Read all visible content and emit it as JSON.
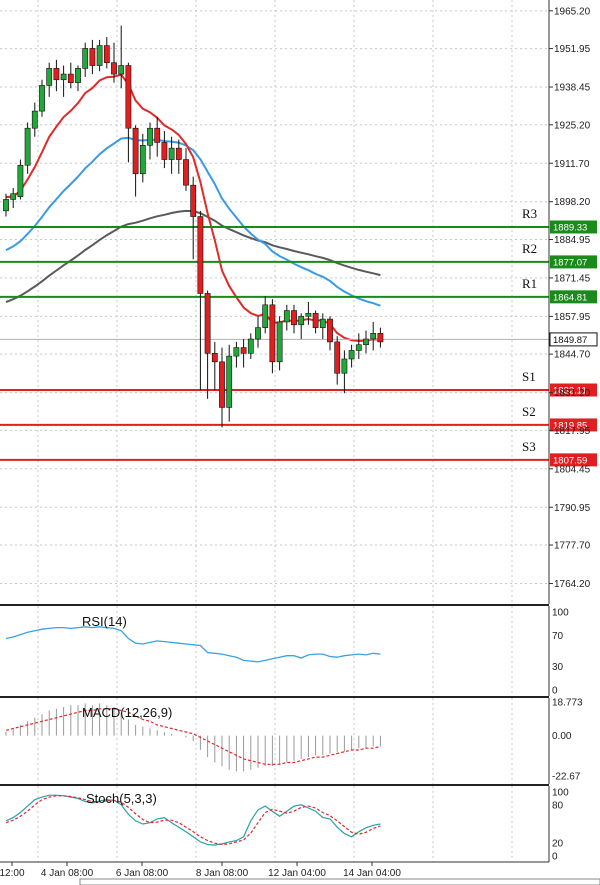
{
  "chart_data": {
    "type": "candlestick",
    "price_axis": {
      "ticks": [
        "1965.20",
        "1951.95",
        "1938.45",
        "1925.20",
        "1911.70",
        "1898.20",
        "1884.95",
        "1871.45",
        "1857.95",
        "1844.70",
        "1831.20",
        "1817.95",
        "1804.45",
        "1790.95",
        "1777.70",
        "1764.20"
      ],
      "range": [
        1757,
        1969
      ]
    },
    "time_axis": {
      "labels": [
        "12:00",
        "4 Jan 08:00",
        "6 Jan 08:00",
        "8 Jan 08:00",
        "12 Jan 04:00",
        "14 Jan 04:00"
      ]
    },
    "levels": [
      {
        "label": "R3",
        "value": 1889.33,
        "value_text": "1889.33",
        "color": "#1a8a1a"
      },
      {
        "label": "R2",
        "value": 1877.07,
        "value_text": "1877.07",
        "color": "#1a8a1a"
      },
      {
        "label": "R1",
        "value": 1864.81,
        "value_text": "1864.81",
        "color": "#1a8a1a"
      },
      {
        "label": "S1",
        "value": 1832.11,
        "value_text": "1832.11",
        "color": "#e02020"
      },
      {
        "label": "S2",
        "value": 1819.85,
        "value_text": "1819.85",
        "color": "#e02020"
      },
      {
        "label": "S3",
        "value": 1807.59,
        "value_text": "1807.59",
        "color": "#e02020"
      }
    ],
    "current_price": {
      "value": 1849.87,
      "value_text": "1849.87"
    },
    "candles": [
      [
        1895,
        1901,
        1893,
        1899
      ],
      [
        1899,
        1903,
        1896,
        1901
      ],
      [
        1900,
        1913,
        1899,
        1911
      ],
      [
        1911,
        1926,
        1908,
        1924
      ],
      [
        1924,
        1933,
        1921,
        1930
      ],
      [
        1930,
        1941,
        1928,
        1939
      ],
      [
        1939,
        1947,
        1935,
        1945
      ],
      [
        1945,
        1948,
        1937,
        1941
      ],
      [
        1941,
        1946,
        1935,
        1943
      ],
      [
        1943,
        1947,
        1938,
        1940
      ],
      [
        1940,
        1946,
        1937,
        1945
      ],
      [
        1945,
        1954,
        1942,
        1952
      ],
      [
        1952,
        1955,
        1943,
        1946
      ],
      [
        1946,
        1955,
        1944,
        1953
      ],
      [
        1953,
        1956,
        1945,
        1947
      ],
      [
        1947,
        1954,
        1940,
        1943
      ],
      [
        1943,
        1960,
        1938,
        1946
      ],
      [
        1946,
        1947,
        1912,
        1924
      ],
      [
        1924,
        1925,
        1900,
        1908
      ],
      [
        1908,
        1922,
        1905,
        1918
      ],
      [
        1918,
        1926,
        1913,
        1924
      ],
      [
        1924,
        1928,
        1914,
        1919
      ],
      [
        1919,
        1923,
        1910,
        1913
      ],
      [
        1913,
        1921,
        1908,
        1917
      ],
      [
        1917,
        1920,
        1908,
        1913
      ],
      [
        1913,
        1917,
        1902,
        1904
      ],
      [
        1904,
        1907,
        1878,
        1893
      ],
      [
        1893,
        1895,
        1832,
        1866
      ],
      [
        1866,
        1867,
        1829,
        1845
      ],
      [
        1845,
        1849,
        1832,
        1842
      ],
      [
        1842,
        1847,
        1819,
        1826
      ],
      [
        1826,
        1848,
        1821,
        1844
      ],
      [
        1844,
        1849,
        1840,
        1847
      ],
      [
        1847,
        1850,
        1840,
        1845
      ],
      [
        1845,
        1852,
        1843,
        1850
      ],
      [
        1850,
        1858,
        1847,
        1854
      ],
      [
        1854,
        1865,
        1852,
        1862
      ],
      [
        1862,
        1864,
        1838,
        1842
      ],
      [
        1842,
        1858,
        1839,
        1856
      ],
      [
        1856,
        1862,
        1853,
        1860
      ],
      [
        1860,
        1862,
        1852,
        1855
      ],
      [
        1855,
        1859,
        1850,
        1858
      ],
      [
        1858,
        1863,
        1855,
        1859
      ],
      [
        1859,
        1860,
        1852,
        1854
      ],
      [
        1854,
        1859,
        1850,
        1857
      ],
      [
        1857,
        1858,
        1846,
        1849
      ],
      [
        1849,
        1851,
        1834,
        1838
      ],
      [
        1838,
        1846,
        1831,
        1843
      ],
      [
        1843,
        1848,
        1840,
        1846
      ],
      [
        1846,
        1852,
        1843,
        1848
      ],
      [
        1848,
        1853,
        1845,
        1850
      ],
      [
        1850,
        1856,
        1846,
        1852
      ],
      [
        1852,
        1854,
        1847,
        1849
      ]
    ],
    "rsi": {
      "label": "RSI(14)",
      "ticks": [
        100,
        70,
        30,
        0
      ],
      "values": [
        66,
        68,
        71,
        74,
        76,
        78,
        79,
        80,
        80,
        79,
        80,
        81,
        80,
        81,
        80,
        79,
        76,
        66,
        60,
        59,
        61,
        63,
        62,
        61,
        60,
        59,
        58,
        57,
        48,
        47,
        46,
        44,
        42,
        38,
        37,
        36,
        38,
        40,
        42,
        44,
        44,
        41,
        45,
        46,
        46,
        43,
        42,
        44,
        45,
        46,
        45,
        47,
        46
      ]
    },
    "macd": {
      "label": "MACD(12,26,9)",
      "ticks": [
        "18.773",
        "0.00",
        "-22.67"
      ],
      "range": [
        -27,
        21
      ],
      "hist": [
        2,
        4,
        6,
        8,
        10,
        12,
        14,
        15,
        16,
        17,
        17,
        18,
        17,
        18,
        17,
        16,
        13,
        9,
        6,
        5,
        4,
        3,
        2,
        1,
        0,
        -1,
        -3,
        -8,
        -12,
        -15,
        -17,
        -19,
        -20,
        -20,
        -19,
        -18,
        -17,
        -17,
        -16,
        -15,
        -14,
        -13,
        -12,
        -11,
        -11,
        -10,
        -9,
        -9,
        -8,
        -7,
        -7,
        -6,
        -6
      ],
      "signal": [
        3,
        4,
        5,
        6,
        7,
        8,
        9,
        10,
        11,
        12,
        13,
        14,
        14,
        15,
        15,
        15,
        14,
        13,
        11,
        9,
        8,
        6,
        5,
        4,
        3,
        2,
        1,
        -1,
        -3,
        -5,
        -7,
        -9,
        -11,
        -13,
        -14,
        -15,
        -16,
        -16,
        -16,
        -15,
        -15,
        -14,
        -13,
        -12,
        -12,
        -11,
        -10,
        -9,
        -8,
        -8,
        -7,
        -7,
        -6
      ]
    },
    "stoch": {
      "label": "Stoch(5,3,3)",
      "ticks": [
        100,
        80,
        20,
        0
      ],
      "k": [
        55,
        60,
        68,
        78,
        88,
        92,
        95,
        95,
        94,
        92,
        90,
        85,
        83,
        86,
        88,
        87,
        80,
        65,
        55,
        50,
        52,
        58,
        60,
        52,
        45,
        38,
        30,
        22,
        18,
        17,
        19,
        22,
        24,
        30,
        55,
        72,
        78,
        70,
        62,
        70,
        78,
        80,
        75,
        70,
        60,
        58,
        45,
        35,
        30,
        38,
        44,
        48,
        50
      ],
      "d": [
        52,
        56,
        62,
        70,
        80,
        88,
        92,
        94,
        94,
        93,
        91,
        88,
        85,
        85,
        86,
        87,
        84,
        76,
        66,
        57,
        52,
        53,
        56,
        56,
        52,
        45,
        38,
        30,
        24,
        20,
        18,
        19,
        22,
        25,
        36,
        52,
        68,
        73,
        70,
        67,
        70,
        76,
        78,
        75,
        68,
        63,
        55,
        46,
        37,
        34,
        37,
        43,
        47
      ]
    }
  }
}
